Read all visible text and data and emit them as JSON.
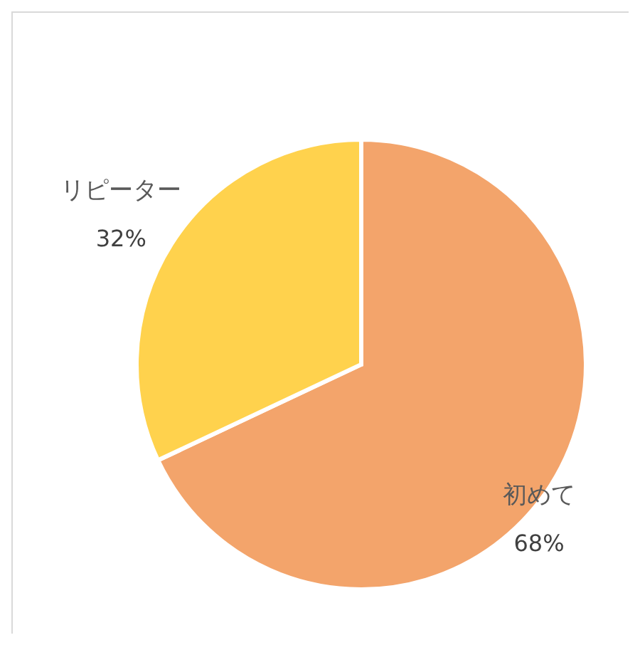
{
  "chart_data": {
    "type": "pie",
    "categories": [
      "初めて",
      "リピーター"
    ],
    "values": [
      68,
      32
    ],
    "colors": [
      "#f3a46b",
      "#ffd24d"
    ],
    "value_labels": [
      "68%",
      "32%"
    ]
  }
}
